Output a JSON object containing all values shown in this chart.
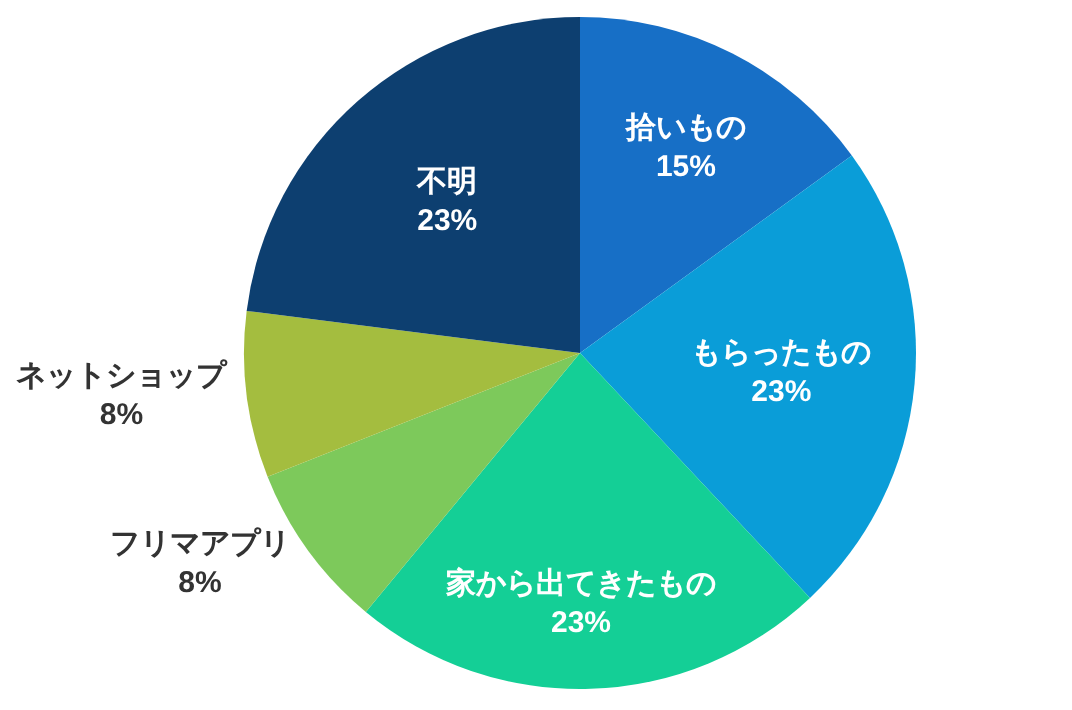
{
  "chart_data": {
    "type": "pie",
    "categories": [
      "拾いもの",
      "もらったもの",
      "家から出てきたもの",
      "フリマアプリ",
      "ネットショップ",
      "不明"
    ],
    "values": [
      15,
      23,
      23,
      8,
      8,
      23
    ],
    "value_labels": [
      "15%",
      "23%",
      "23%",
      "8%",
      "8%",
      "23%"
    ],
    "colors": [
      "#176fc6",
      "#0a9dd8",
      "#14cf96",
      "#7dc95b",
      "#a4bd3f",
      "#0d3f70"
    ],
    "legend": false
  }
}
